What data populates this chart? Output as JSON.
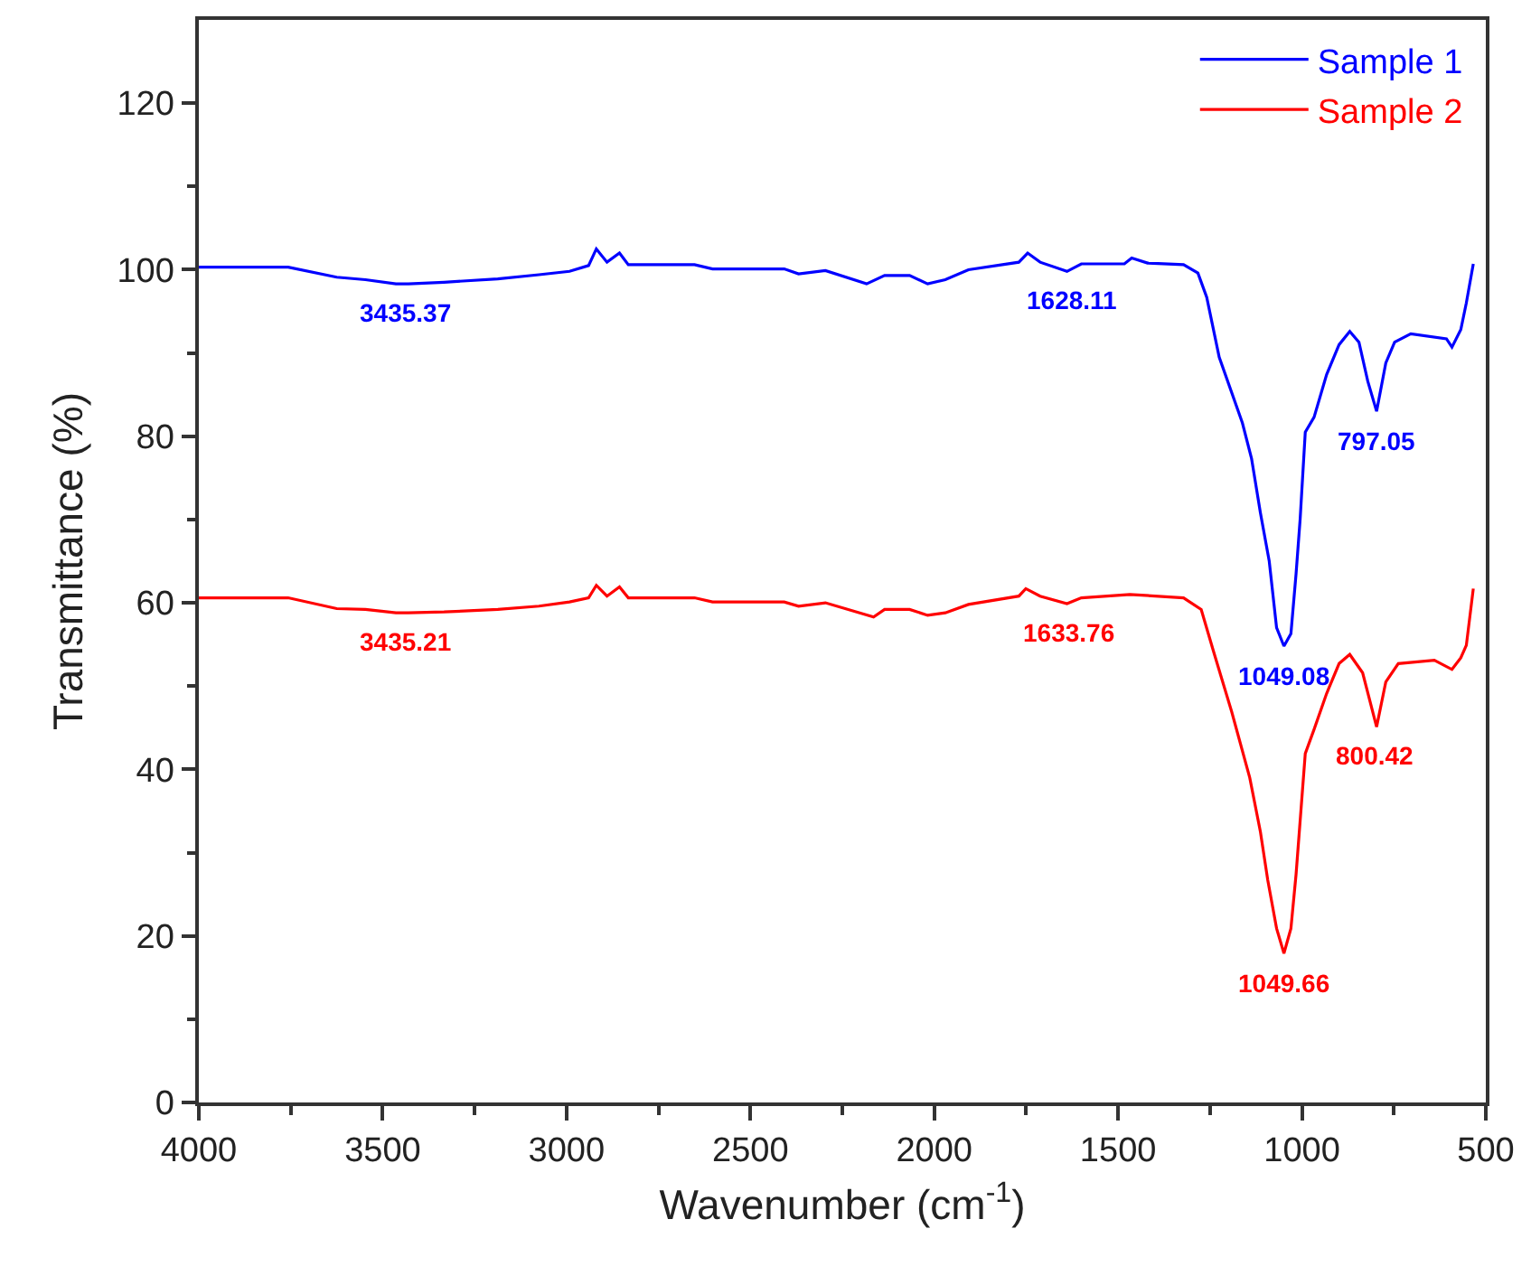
{
  "chart_data": {
    "type": "line",
    "xlabel": "Wavenumber (cm$^{-1}$)",
    "ylabel": "Transmittance (%)",
    "xlim": [
      4000,
      500
    ],
    "ylim": [
      0,
      130
    ],
    "xticks": [
      4000,
      {
        "value": 3750,
        "label": null
      },
      3500,
      {
        "value": 3250,
        "label": null
      },
      3000,
      {
        "value": 2750,
        "label": null
      },
      2500,
      {
        "value": 2250,
        "label": null
      },
      2000,
      {
        "value": 1750,
        "label": null
      },
      1500,
      {
        "value": 1250,
        "label": null
      },
      1000,
      {
        "value": 750,
        "label": null
      },
      500
    ],
    "yticks": [
      0,
      {
        "value": 10,
        "label": null
      },
      20,
      {
        "value": 30,
        "label": null
      },
      40,
      {
        "value": 50,
        "label": null
      },
      60,
      {
        "value": 70,
        "label": null
      },
      80,
      {
        "value": 90,
        "label": null
      },
      100,
      {
        "value": 110,
        "label": null
      },
      120
    ],
    "grid": false,
    "legend": "top right",
    "marker": "none",
    "line_style": "solid",
    "series": [
      {
        "name": "Sample 1",
        "color": "#0000ff",
        "x": [
          4000,
          3757,
          3625,
          3547,
          3464,
          3430,
          3333,
          3187,
          3075,
          2992,
          2940,
          2919,
          2890,
          2856,
          2832,
          2652,
          2603,
          2408,
          2369,
          2296,
          2184,
          2135,
          2067,
          2018,
          1970,
          1907,
          1770,
          1746,
          1712,
          1639,
          1600,
          1483,
          1463,
          1420,
          1322,
          1283,
          1259,
          1225,
          1162,
          1137,
          1113,
          1089,
          1069,
          1049,
          1030,
          1016,
          1005,
          991,
          967,
          933,
          899,
          870,
          845,
          821,
          797,
          772,
          748,
          704,
          607,
          592,
          568,
          553,
          534
        ],
        "values": [
          100.3,
          100.3,
          99.1,
          98.8,
          98.3,
          98.3,
          98.5,
          98.9,
          99.4,
          99.8,
          100.5,
          102.5,
          100.9,
          102.0,
          100.6,
          100.6,
          100.1,
          100.1,
          99.5,
          99.9,
          98.3,
          99.3,
          99.3,
          98.3,
          98.8,
          100.0,
          100.9,
          102.0,
          100.9,
          99.8,
          100.7,
          100.7,
          101.4,
          100.8,
          100.6,
          99.6,
          96.7,
          89.5,
          81.6,
          77.3,
          70.8,
          65.0,
          57.0,
          54.8,
          56.3,
          63.5,
          70.0,
          80.5,
          82.3,
          87.4,
          91.0,
          92.6,
          91.3,
          86.6,
          83.0,
          88.8,
          91.3,
          92.3,
          91.7,
          90.7,
          92.8,
          96.0,
          100.7
        ]
      },
      {
        "name": "Sample 2",
        "color": "#ff0000",
        "x": [
          4000,
          3757,
          3625,
          3547,
          3464,
          3430,
          3333,
          3187,
          3075,
          2992,
          2940,
          2919,
          2890,
          2856,
          2832,
          2652,
          2603,
          2408,
          2369,
          2296,
          2165,
          2135,
          2067,
          2018,
          1970,
          1907,
          1770,
          1751,
          1712,
          1639,
          1600,
          1468,
          1322,
          1274,
          1240,
          1191,
          1142,
          1113,
          1093,
          1069,
          1049,
          1030,
          1016,
          991,
          967,
          933,
          899,
          870,
          835,
          797,
          772,
          738,
          640,
          592,
          568,
          553,
          534
        ],
        "values": [
          60.6,
          60.6,
          59.3,
          59.2,
          58.8,
          58.8,
          58.9,
          59.2,
          59.6,
          60.1,
          60.6,
          62.1,
          60.8,
          61.9,
          60.6,
          60.6,
          60.1,
          60.1,
          59.6,
          60.0,
          58.3,
          59.2,
          59.2,
          58.5,
          58.8,
          59.8,
          60.8,
          61.7,
          60.8,
          59.9,
          60.6,
          61.0,
          60.6,
          59.2,
          54.1,
          46.9,
          39.0,
          32.5,
          26.7,
          20.9,
          17.9,
          20.9,
          27.4,
          41.9,
          44.8,
          49.1,
          52.7,
          53.8,
          51.6,
          45.1,
          50.5,
          52.7,
          53.1,
          52.0,
          53.4,
          54.9,
          61.7
        ]
      }
    ],
    "annotations": [
      {
        "text": "3435.37",
        "x": 3435.37,
        "y": 98.3
      },
      {
        "text": "1628.11",
        "x": 1628.11,
        "y": 99.8
      },
      {
        "text": "1049.08",
        "x": 1049.08,
        "y": 54.8
      },
      {
        "text": "797.05",
        "x": 797.05,
        "y": 83.0
      },
      {
        "text": "3435.21",
        "x": 3435.21,
        "y": 58.8
      },
      {
        "text": "1633.76",
        "x": 1633.76,
        "y": 59.9
      },
      {
        "text": "1049.66",
        "x": 1049.66,
        "y": 17.9
      },
      {
        "text": "800.42",
        "x": 800.42,
        "y": 45.1
      }
    ]
  }
}
